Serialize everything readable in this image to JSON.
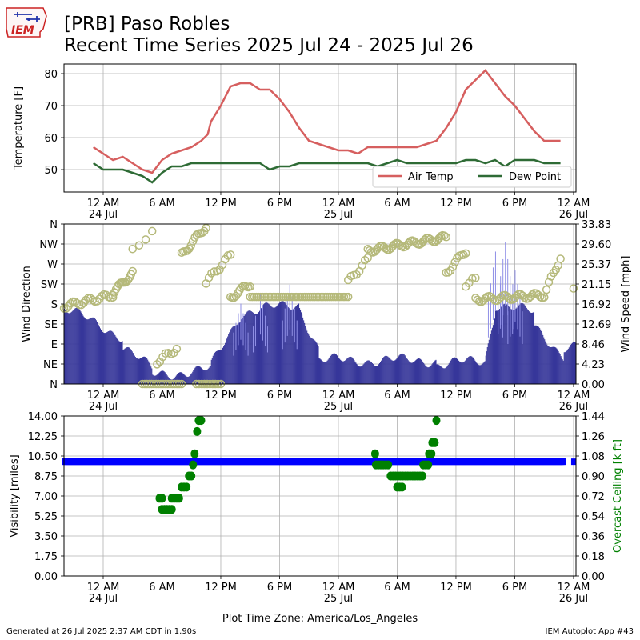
{
  "title": {
    "line1": "[PRB] Paso Robles",
    "line2": "Recent Time Series 2025 Jul 24 - 2025 Jul 26"
  },
  "logo": {
    "text": "IEM"
  },
  "footer": {
    "left": "Generated at 26 Jul 2025 2:37 AM CDT in 1.90s",
    "right": "IEM Autoplot App #43"
  },
  "colors": {
    "air_temp": "#d65f5f",
    "dew_point": "#2e6b35",
    "wind_dir": "#b5b97a",
    "wind_speed": "#37379a",
    "wind_gust": "#8f8fe6",
    "visibility": "#0000ff",
    "ceiling": "#008000",
    "ceiling_label": "#008000"
  },
  "x_axis": {
    "start": "2025-07-23T20:00",
    "end": "2025-07-26T00:15",
    "tick_labels": [
      {
        "time": "2025-07-24T00:00",
        "line1": "12 AM",
        "line2": "24 Jul"
      },
      {
        "time": "2025-07-24T06:00",
        "line1": "6 AM",
        "line2": ""
      },
      {
        "time": "2025-07-24T12:00",
        "line1": "12 PM",
        "line2": ""
      },
      {
        "time": "2025-07-24T18:00",
        "line1": "6 PM",
        "line2": ""
      },
      {
        "time": "2025-07-25T00:00",
        "line1": "12 AM",
        "line2": "25 Jul"
      },
      {
        "time": "2025-07-25T06:00",
        "line1": "6 AM",
        "line2": ""
      },
      {
        "time": "2025-07-25T12:00",
        "line1": "12 PM",
        "line2": ""
      },
      {
        "time": "2025-07-25T18:00",
        "line1": "6 PM",
        "line2": ""
      },
      {
        "time": "2025-07-26T00:00",
        "line1": "12 AM",
        "line2": "26 Jul"
      }
    ],
    "timezone_label": "Plot Time Zone: America/Los_Angeles"
  },
  "chart_data": [
    {
      "type": "line",
      "ylabel": "Temperature [F]",
      "ylim": [
        43,
        83
      ],
      "yticks": [
        50,
        60,
        70,
        80
      ],
      "grid": true,
      "legend_position": "bottom-right",
      "legend_entries": [
        "Air Temp",
        "Dew Point"
      ],
      "series": [
        {
          "name": "Air Temp",
          "x": [
            "2025-07-23T23:00",
            "2025-07-24T00:00",
            "2025-07-24T01:00",
            "2025-07-24T02:00",
            "2025-07-24T03:00",
            "2025-07-24T04:00",
            "2025-07-24T05:00",
            "2025-07-24T06:00",
            "2025-07-24T07:00",
            "2025-07-24T08:00",
            "2025-07-24T09:00",
            "2025-07-24T10:00",
            "2025-07-24T10:40",
            "2025-07-24T11:00",
            "2025-07-24T12:00",
            "2025-07-24T13:00",
            "2025-07-24T14:00",
            "2025-07-24T15:00",
            "2025-07-24T16:00",
            "2025-07-24T17:00",
            "2025-07-24T18:00",
            "2025-07-24T19:00",
            "2025-07-24T20:00",
            "2025-07-24T21:00",
            "2025-07-24T22:00",
            "2025-07-24T23:00",
            "2025-07-25T00:00",
            "2025-07-25T01:00",
            "2025-07-25T02:00",
            "2025-07-25T03:00",
            "2025-07-25T04:00",
            "2025-07-25T05:00",
            "2025-07-25T06:00",
            "2025-07-25T07:00",
            "2025-07-25T08:00",
            "2025-07-25T09:00",
            "2025-07-25T10:00",
            "2025-07-25T11:00",
            "2025-07-25T12:00",
            "2025-07-25T13:00",
            "2025-07-25T14:00",
            "2025-07-25T15:00",
            "2025-07-25T16:00",
            "2025-07-25T17:00",
            "2025-07-25T18:00",
            "2025-07-25T19:00",
            "2025-07-25T20:00",
            "2025-07-25T21:00",
            "2025-07-25T22:00",
            "2025-07-25T22:40"
          ],
          "values": [
            57,
            55,
            53,
            54,
            52,
            50,
            49,
            53,
            55,
            56,
            57,
            59,
            61,
            65,
            70,
            76,
            77,
            77,
            75,
            75,
            72,
            68,
            63,
            59,
            58,
            57,
            56,
            56,
            55,
            57,
            57,
            57,
            57,
            57,
            57,
            58,
            59,
            63,
            68,
            75,
            78,
            81,
            77,
            73,
            70,
            66,
            62,
            59,
            59,
            59
          ]
        },
        {
          "name": "Dew Point",
          "x": [
            "2025-07-23T23:00",
            "2025-07-24T00:00",
            "2025-07-24T01:00",
            "2025-07-24T02:00",
            "2025-07-24T03:00",
            "2025-07-24T04:00",
            "2025-07-24T05:00",
            "2025-07-24T06:00",
            "2025-07-24T07:00",
            "2025-07-24T08:00",
            "2025-07-24T09:00",
            "2025-07-24T10:00",
            "2025-07-24T11:00",
            "2025-07-24T12:00",
            "2025-07-24T13:00",
            "2025-07-24T14:00",
            "2025-07-24T15:00",
            "2025-07-24T16:00",
            "2025-07-24T17:00",
            "2025-07-24T18:00",
            "2025-07-24T19:00",
            "2025-07-24T20:00",
            "2025-07-24T21:00",
            "2025-07-24T22:00",
            "2025-07-24T23:00",
            "2025-07-25T00:00",
            "2025-07-25T01:00",
            "2025-07-25T02:00",
            "2025-07-25T03:00",
            "2025-07-25T04:00",
            "2025-07-25T05:00",
            "2025-07-25T06:00",
            "2025-07-25T07:00",
            "2025-07-25T08:00",
            "2025-07-25T09:00",
            "2025-07-25T10:00",
            "2025-07-25T11:00",
            "2025-07-25T12:00",
            "2025-07-25T13:00",
            "2025-07-25T14:00",
            "2025-07-25T15:00",
            "2025-07-25T16:00",
            "2025-07-25T17:00",
            "2025-07-25T18:00",
            "2025-07-25T19:00",
            "2025-07-25T20:00",
            "2025-07-25T21:00",
            "2025-07-25T22:00",
            "2025-07-25T22:40"
          ],
          "values": [
            52,
            50,
            50,
            50,
            49,
            48,
            46,
            49,
            51,
            51,
            52,
            52,
            52,
            52,
            52,
            52,
            52,
            52,
            50,
            51,
            51,
            52,
            52,
            52,
            52,
            52,
            52,
            52,
            52,
            51,
            52,
            53,
            52,
            52,
            52,
            52,
            52,
            52,
            53,
            53,
            52,
            53,
            51,
            53,
            53,
            53,
            52,
            52,
            52
          ]
        }
      ]
    },
    {
      "type": "scatter",
      "ylabel": "Wind Direction",
      "ylabel_right": "Wind Speed [mph]",
      "ylim": [
        0,
        360
      ],
      "ytick_values": [
        0,
        45,
        90,
        135,
        180,
        225,
        270,
        315,
        360
      ],
      "ytick_labels": [
        "N",
        "NE",
        "E",
        "SE",
        "S",
        "SW",
        "W",
        "NW",
        "N"
      ],
      "ylim_right": [
        0,
        33.83
      ],
      "yticks_right": [
        "0.00",
        "4.23",
        "8.46",
        "12.69",
        "16.92",
        "21.15",
        "25.37",
        "29.60",
        "33.83"
      ],
      "grid": true,
      "wind_direction_segments": [
        {
          "from": "2025-07-23T20:00",
          "to": "2025-07-23T22:00",
          "start": 175,
          "end": 185,
          "n": 10
        },
        {
          "from": "2025-07-23T22:00",
          "to": "2025-07-24T01:00",
          "start": 185,
          "end": 200,
          "n": 14
        },
        {
          "from": "2025-07-24T01:00",
          "to": "2025-07-24T03:00",
          "start": 205,
          "end": 250,
          "n": 14
        },
        {
          "from": "2025-07-24T03:00",
          "to": "2025-07-24T05:00",
          "start": 300,
          "end": 340,
          "n": 4
        },
        {
          "from": "2025-07-24T04:00",
          "to": "2025-07-24T08:00",
          "start": 0,
          "end": 0,
          "n": 18
        },
        {
          "from": "2025-07-24T05:30",
          "to": "2025-07-24T07:30",
          "start": 50,
          "end": 80,
          "n": 8
        },
        {
          "from": "2025-07-24T08:00",
          "to": "2025-07-24T10:30",
          "start": 290,
          "end": 355,
          "n": 14
        },
        {
          "from": "2025-07-24T09:30",
          "to": "2025-07-24T12:00",
          "start": 0,
          "end": 0,
          "n": 10
        },
        {
          "from": "2025-07-24T10:30",
          "to": "2025-07-24T13:00",
          "start": 230,
          "end": 290,
          "n": 10
        },
        {
          "from": "2025-07-24T13:00",
          "to": "2025-07-24T15:00",
          "start": 195,
          "end": 225,
          "n": 12
        },
        {
          "from": "2025-07-24T15:00",
          "to": "2025-07-25T01:00",
          "start": 196,
          "end": 196,
          "n": 48
        },
        {
          "from": "2025-07-25T01:00",
          "to": "2025-07-25T03:00",
          "start": 230,
          "end": 280,
          "n": 8
        },
        {
          "from": "2025-07-25T03:00",
          "to": "2025-07-25T11:00",
          "start": 300,
          "end": 330,
          "n": 45
        },
        {
          "from": "2025-07-25T11:00",
          "to": "2025-07-25T13:00",
          "start": 250,
          "end": 300,
          "n": 10
        },
        {
          "from": "2025-07-25T13:00",
          "to": "2025-07-25T14:00",
          "start": 225,
          "end": 235,
          "n": 4
        },
        {
          "from": "2025-07-25T14:00",
          "to": "2025-07-25T21:00",
          "start": 190,
          "end": 200,
          "n": 36
        },
        {
          "from": "2025-07-25T21:00",
          "to": "2025-07-25T22:40",
          "start": 200,
          "end": 285,
          "n": 8
        },
        {
          "from": "2025-07-25T23:50",
          "to": "2025-07-26T00:10",
          "start": 215,
          "end": 215,
          "n": 1
        }
      ],
      "wind_speed_series": [
        {
          "from": "2025-07-23T20:00",
          "to": "2025-07-24T02:00",
          "start": 16,
          "end": 10
        },
        {
          "from": "2025-07-24T02:00",
          "to": "2025-07-24T05:00",
          "start": 8,
          "end": 3
        },
        {
          "from": "2025-07-24T05:00",
          "to": "2025-07-24T11:00",
          "start": 2,
          "end": 3
        },
        {
          "from": "2025-07-24T11:00",
          "to": "2025-07-24T14:00",
          "start": 4,
          "end": 15
        },
        {
          "from": "2025-07-24T14:00",
          "to": "2025-07-24T20:00",
          "start": 15,
          "end": 17
        },
        {
          "from": "2025-07-24T20:00",
          "to": "2025-07-24T22:00",
          "start": 16,
          "end": 7
        },
        {
          "from": "2025-07-24T22:00",
          "to": "2025-07-25T10:00",
          "start": 5,
          "end": 5
        },
        {
          "from": "2025-07-25T10:00",
          "to": "2025-07-25T15:00",
          "start": 4,
          "end": 5
        },
        {
          "from": "2025-07-25T15:00",
          "to": "2025-07-25T16:00",
          "start": 6,
          "end": 16
        },
        {
          "from": "2025-07-25T16:00",
          "to": "2025-07-25T20:00",
          "start": 17,
          "end": 15
        },
        {
          "from": "2025-07-25T20:00",
          "to": "2025-07-25T23:00",
          "start": 12,
          "end": 6
        },
        {
          "from": "2025-07-25T23:00",
          "to": "2025-07-26T00:15",
          "start": 8,
          "end": 8
        }
      ],
      "wind_gust_peaks": [
        {
          "time": "2025-07-24T14:00",
          "value": 17
        },
        {
          "time": "2025-07-24T16:00",
          "value": 19
        },
        {
          "time": "2025-07-24T19:00",
          "value": 21
        },
        {
          "time": "2025-07-25T16:00",
          "value": 28
        },
        {
          "time": "2025-07-25T17:00",
          "value": 30
        },
        {
          "time": "2025-07-25T18:00",
          "value": 24
        }
      ]
    },
    {
      "type": "scatter",
      "ylabel": "Visibility [miles]",
      "ylabel_right": "Overcast Ceiling [k ft]",
      "ylim": [
        0,
        14
      ],
      "yticks": [
        "0.00",
        "1.75",
        "3.50",
        "5.25",
        "7.00",
        "8.75",
        "10.50",
        "12.25",
        "14.00"
      ],
      "ylim_right": [
        0,
        1.44
      ],
      "yticks_right": [
        "0.00",
        "0.18",
        "0.36",
        "0.54",
        "0.72",
        "0.90",
        "1.08",
        "1.26",
        "1.44"
      ],
      "grid": true,
      "visibility": {
        "from": "2025-07-23T20:00",
        "to": "2025-07-25T23:00",
        "value": 10,
        "extra_point": {
          "time": "2025-07-26T00:00",
          "value": 10
        }
      },
      "ceiling_points": [
        {
          "time": "2025-07-24T05:45",
          "value": 0.7
        },
        {
          "time": "2025-07-24T06:00",
          "value": 0.7
        },
        {
          "time": "2025-07-24T06:00",
          "value": 0.6
        },
        {
          "time": "2025-07-24T06:15",
          "value": 0.6
        },
        {
          "time": "2025-07-24T06:30",
          "value": 0.6
        },
        {
          "time": "2025-07-24T06:45",
          "value": 0.6
        },
        {
          "time": "2025-07-24T07:00",
          "value": 0.6
        },
        {
          "time": "2025-07-24T07:00",
          "value": 0.7
        },
        {
          "time": "2025-07-24T07:15",
          "value": 0.7
        },
        {
          "time": "2025-07-24T07:30",
          "value": 0.7
        },
        {
          "time": "2025-07-24T07:45",
          "value": 0.7
        },
        {
          "time": "2025-07-24T08:00",
          "value": 0.8
        },
        {
          "time": "2025-07-24T08:15",
          "value": 0.8
        },
        {
          "time": "2025-07-24T08:30",
          "value": 0.8
        },
        {
          "time": "2025-07-24T08:45",
          "value": 0.9
        },
        {
          "time": "2025-07-24T09:00",
          "value": 0.9
        },
        {
          "time": "2025-07-24T09:10",
          "value": 1.0
        },
        {
          "time": "2025-07-24T09:20",
          "value": 1.1
        },
        {
          "time": "2025-07-24T09:35",
          "value": 1.3
        },
        {
          "time": "2025-07-24T09:45",
          "value": 1.4
        },
        {
          "time": "2025-07-24T10:00",
          "value": 1.4
        },
        {
          "time": "2025-07-25T03:45",
          "value": 1.1
        },
        {
          "time": "2025-07-25T03:50",
          "value": 1.0
        },
        {
          "time": "2025-07-25T04:05",
          "value": 1.0
        },
        {
          "time": "2025-07-25T04:20",
          "value": 1.0
        },
        {
          "time": "2025-07-25T04:35",
          "value": 1.0
        },
        {
          "time": "2025-07-25T04:50",
          "value": 1.0
        },
        {
          "time": "2025-07-25T05:05",
          "value": 1.0
        },
        {
          "time": "2025-07-25T05:20",
          "value": 0.9
        },
        {
          "time": "2025-07-25T05:35",
          "value": 0.9
        },
        {
          "time": "2025-07-25T05:50",
          "value": 0.9
        },
        {
          "time": "2025-07-25T06:05",
          "value": 0.9
        },
        {
          "time": "2025-07-25T06:20",
          "value": 0.9
        },
        {
          "time": "2025-07-25T06:35",
          "value": 0.9
        },
        {
          "time": "2025-07-25T06:50",
          "value": 0.9
        },
        {
          "time": "2025-07-25T07:05",
          "value": 0.9
        },
        {
          "time": "2025-07-25T07:20",
          "value": 0.9
        },
        {
          "time": "2025-07-25T07:35",
          "value": 0.9
        },
        {
          "time": "2025-07-25T07:50",
          "value": 0.9
        },
        {
          "time": "2025-07-25T08:05",
          "value": 0.9
        },
        {
          "time": "2025-07-25T08:20",
          "value": 0.9
        },
        {
          "time": "2025-07-25T08:35",
          "value": 0.9
        },
        {
          "time": "2025-07-25T06:00",
          "value": 0.8
        },
        {
          "time": "2025-07-25T06:15",
          "value": 0.8
        },
        {
          "time": "2025-07-25T06:30",
          "value": 0.8
        },
        {
          "time": "2025-07-25T08:40",
          "value": 1.0
        },
        {
          "time": "2025-07-25T08:55",
          "value": 1.0
        },
        {
          "time": "2025-07-25T09:10",
          "value": 1.0
        },
        {
          "time": "2025-07-25T09:15",
          "value": 1.1
        },
        {
          "time": "2025-07-25T09:30",
          "value": 1.1
        },
        {
          "time": "2025-07-25T09:35",
          "value": 1.2
        },
        {
          "time": "2025-07-25T09:50",
          "value": 1.2
        },
        {
          "time": "2025-07-25T10:00",
          "value": 1.4
        }
      ]
    }
  ]
}
